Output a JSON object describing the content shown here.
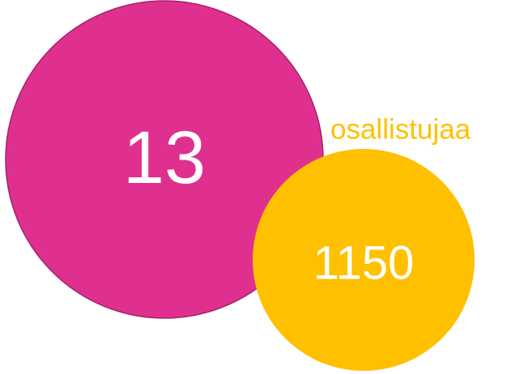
{
  "circles": [
    {
      "value": "13",
      "color": "#e0308f"
    },
    {
      "value": "1150",
      "color": "#ffc000",
      "label": "osallistujaa"
    }
  ]
}
